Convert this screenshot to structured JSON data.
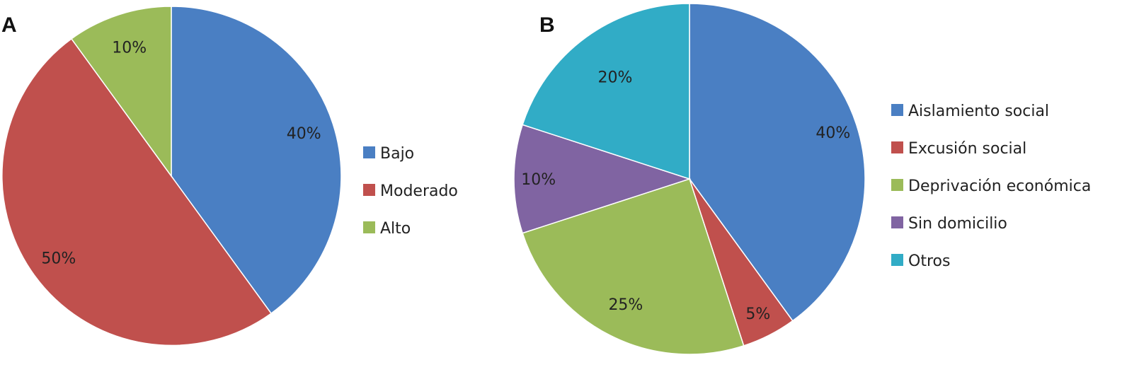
{
  "panels": [
    {
      "label": "A",
      "chart_data": {
        "type": "pie",
        "title": "",
        "categories": [
          "Bajo",
          "Moderado",
          "Alto"
        ],
        "values": [
          40,
          50,
          10
        ],
        "value_labels": [
          "40%",
          "50%",
          "10%"
        ],
        "colors": [
          "#4a7fc3",
          "#c0504d",
          "#9bbb59"
        ],
        "start_angle": "12 o'clock, clockwise",
        "legend": {
          "placement": "right",
          "entries": [
            "Bajo",
            "Moderado",
            "Alto"
          ]
        }
      }
    },
    {
      "label": "B",
      "chart_data": {
        "type": "pie",
        "title": "",
        "categories": [
          "Aislamiento social",
          "Excusión social",
          "Deprivación económica",
          "Sin domicilio",
          "Otros"
        ],
        "values": [
          40,
          5,
          25,
          10,
          20
        ],
        "value_labels": [
          "40%",
          "5%",
          "25%",
          "10%",
          "20%"
        ],
        "colors": [
          "#4a7fc3",
          "#c0504d",
          "#9bbb59",
          "#8064a2",
          "#31acc6"
        ],
        "start_angle": "12 o'clock, clockwise",
        "legend": {
          "placement": "right",
          "entries": [
            "Aislamiento social",
            "Excusión social",
            "Deprivación económica",
            "Sin domicilio",
            "Otros"
          ]
        }
      }
    }
  ]
}
